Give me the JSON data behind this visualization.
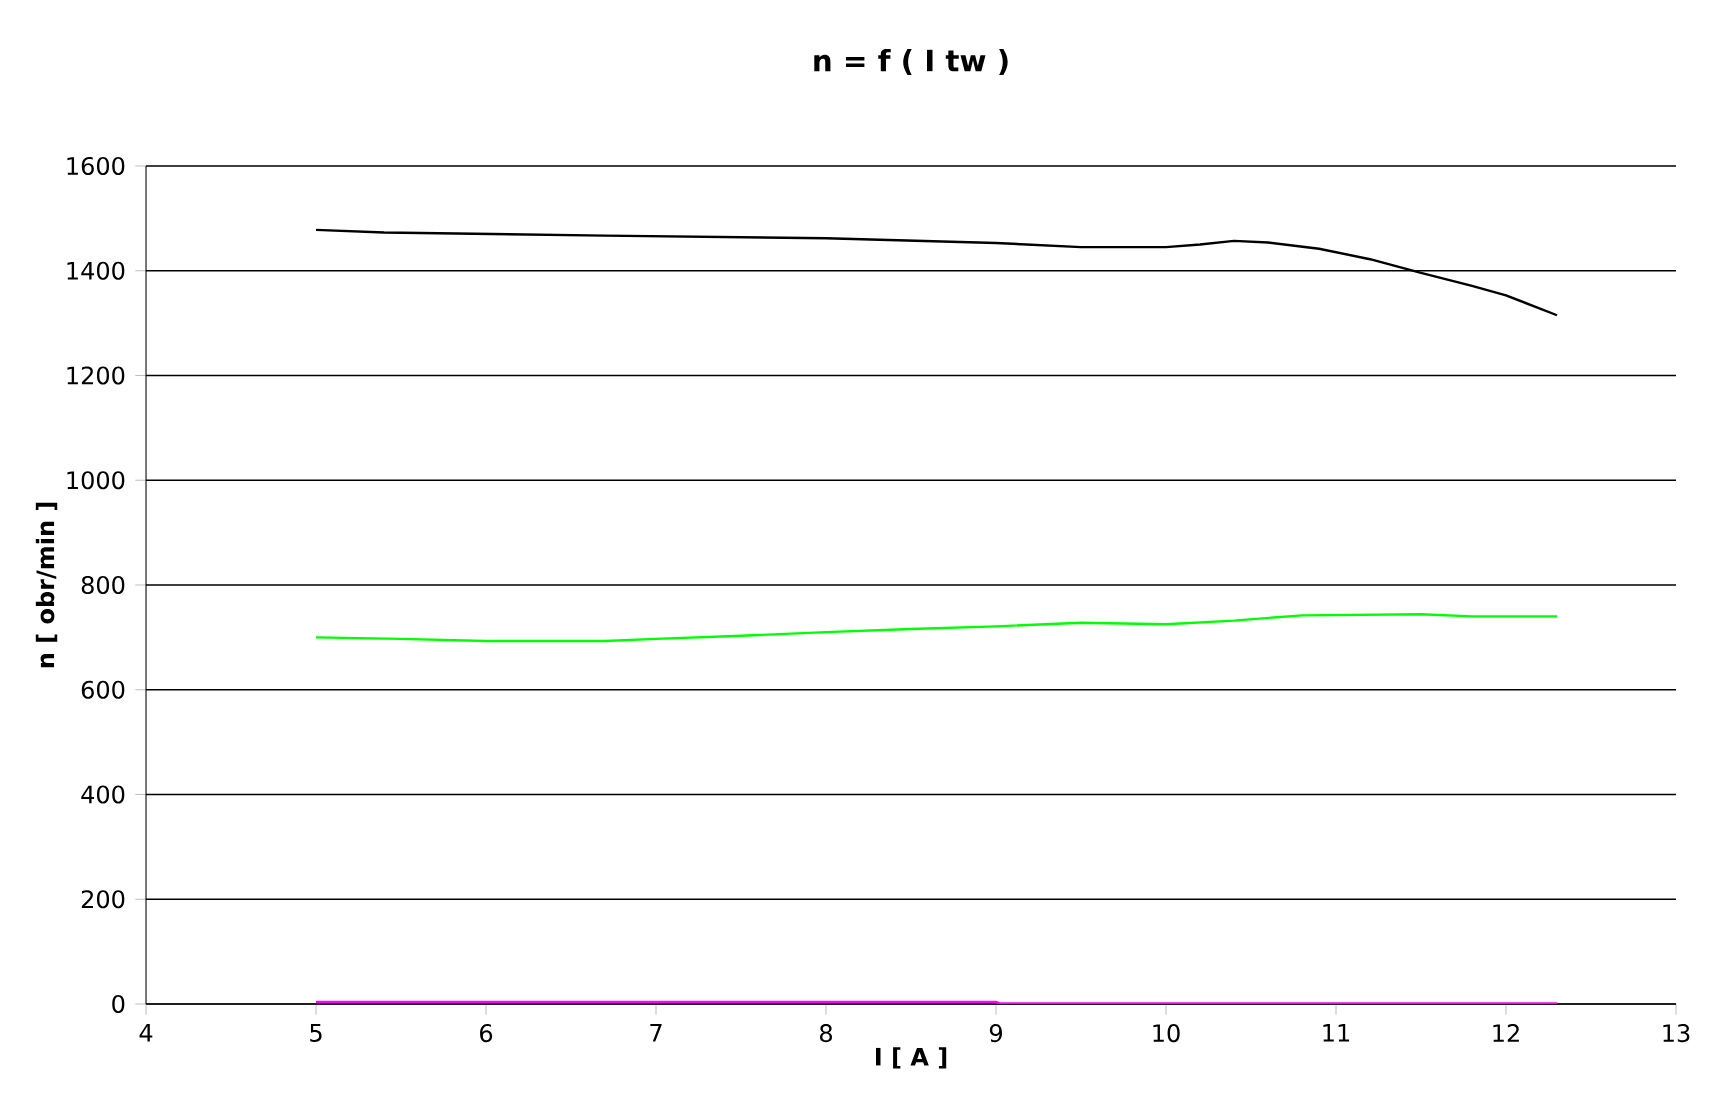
{
  "chart_data": {
    "type": "line",
    "title": "n = f ( I tw )",
    "xlabel": "I [ A ]",
    "ylabel": "n [ obr/min ]",
    "xlim": [
      4,
      13
    ],
    "ylim": [
      0,
      1600
    ],
    "xticks": [
      4,
      5,
      6,
      7,
      8,
      9,
      10,
      11,
      12,
      13
    ],
    "yticks": [
      0,
      200,
      400,
      600,
      800,
      1000,
      1200,
      1400,
      1600
    ],
    "grid": "y",
    "marker": "none",
    "line_style": "solid",
    "series": [
      {
        "color": "#000000",
        "x": [
          5,
          5.4,
          6.7,
          8,
          9,
          9.5,
          10,
          10.2,
          10.4,
          10.6,
          10.9,
          11.2,
          11.5,
          11.8,
          12,
          12.3
        ],
        "values": [
          1478,
          1473,
          1467,
          1462,
          1453,
          1445,
          1445,
          1450,
          1457,
          1454,
          1442,
          1422,
          1396,
          1371,
          1353,
          1315
        ]
      },
      {
        "color": "#00ff00",
        "x": [
          5,
          5.5,
          6,
          6.7,
          7,
          7.5,
          8,
          8.5,
          9,
          9.5,
          10,
          10.4,
          10.8,
          11.5,
          11.8,
          12.3
        ],
        "values": [
          700,
          697,
          693,
          693,
          697,
          703,
          710,
          716,
          721,
          728,
          725,
          732,
          742,
          744,
          740,
          740
        ]
      },
      {
        "color": "#ff00ff",
        "x": [
          5,
          9,
          9.02,
          12.3
        ],
        "values": [
          4,
          4,
          1,
          1
        ]
      }
    ]
  }
}
